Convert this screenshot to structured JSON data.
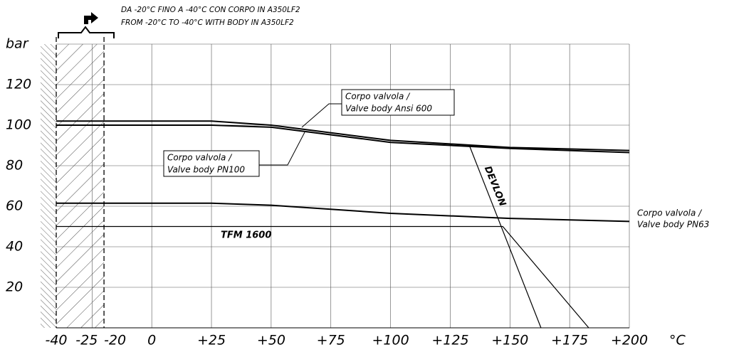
{
  "chart_data": {
    "type": "line",
    "note_lines": [
      "DA -20°C FINO A -40°C CON CORPO IN A350LF2",
      "FROM -20°C TO -40°C WITH BODY IN A350LF2"
    ],
    "y_label": "bar",
    "x_label": "°C",
    "xlim": [
      -40,
      200
    ],
    "ylim": [
      0,
      140
    ],
    "xticks": [
      -40,
      -25,
      -20,
      0,
      {
        "value": 25,
        "label": "+25"
      },
      {
        "value": 50,
        "label": "+50"
      },
      {
        "value": 75,
        "label": "+75"
      },
      {
        "value": 100,
        "label": "+100"
      },
      {
        "value": 125,
        "label": "+125"
      },
      {
        "value": 150,
        "label": "+150"
      },
      {
        "value": 175,
        "label": "+175"
      },
      {
        "value": 200,
        "label": "+200"
      }
    ],
    "yticks": [
      20,
      40,
      60,
      80,
      100,
      120
    ],
    "grid": true,
    "series": [
      {
        "label": [
          "Corpo valvola /",
          "Valve body Ansi 600"
        ],
        "color": "#000000",
        "x": [
          -40,
          25,
          50,
          100,
          150,
          200
        ],
        "values": [
          102,
          102,
          100,
          92.5,
          89,
          87.5
        ]
      },
      {
        "label": [
          "Corpo valvola /",
          "Valve body PN100"
        ],
        "color": "#000000",
        "x": [
          -40,
          25,
          50,
          100,
          150,
          200
        ],
        "values": [
          100,
          100,
          99,
          91.5,
          88.5,
          86.5
        ]
      },
      {
        "label": [
          "Corpo valvola /",
          "Valve body PN63"
        ],
        "color": "#000000",
        "x": [
          -40,
          25,
          50,
          100,
          150,
          200
        ],
        "values": [
          61.5,
          61.5,
          60.5,
          56.5,
          54,
          52.5
        ]
      },
      {
        "name": "TFM 1600",
        "color": "#000000",
        "x": [
          -40,
          147,
          183
        ],
        "values": [
          50,
          50,
          0
        ]
      },
      {
        "name": "DEVLON",
        "color": "#000000",
        "x": [
          133,
          163
        ],
        "values": [
          90,
          0
        ]
      }
    ]
  }
}
